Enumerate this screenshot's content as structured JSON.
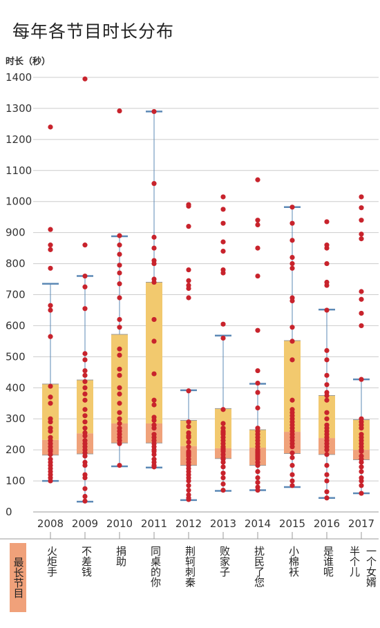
{
  "title": "每年各节目时长分布",
  "y_unit_label": "时长（秒）",
  "longest_label": "最长节目",
  "longest_programs": [
    "火炬手",
    "不差钱",
    "捐助",
    "同桌的你",
    "荆轲刺秦",
    "败家子",
    "扰民了您",
    "小棉袄",
    "是谁呢",
    "半个儿|一个女婿"
  ],
  "colors": {
    "box_upper": "#f2c96e",
    "box_lower": "#f0a27a",
    "point": "#c8232c",
    "whisker": "#5b88b5",
    "axis": "#999999",
    "grid": "#cccccc"
  },
  "chart_data": {
    "type": "box",
    "title": "每年各节目时长分布",
    "ylabel": "时长（秒）",
    "ylim": [
      0,
      1400
    ],
    "yticks": [
      0,
      100,
      200,
      300,
      400,
      500,
      600,
      700,
      800,
      900,
      1000,
      1100,
      1200,
      1300,
      1400
    ],
    "categories": [
      "2008",
      "2009",
      "2010",
      "2011",
      "2012",
      "2013",
      "2014",
      "2015",
      "2016",
      "2017"
    ],
    "boxes": [
      {
        "year": "2008",
        "whisker_low": 100,
        "q1": 183,
        "median": 232,
        "q3": 412,
        "whisker_high": 735
      },
      {
        "year": "2009",
        "whisker_low": 33,
        "q1": 187,
        "median": 253,
        "q3": 425,
        "whisker_high": 760
      },
      {
        "year": "2010",
        "whisker_low": 147,
        "q1": 222,
        "median": 285,
        "q3": 572,
        "whisker_high": 888
      },
      {
        "year": "2011",
        "whisker_low": 143,
        "q1": 222,
        "median": 285,
        "q3": 740,
        "whisker_high": 1290
      },
      {
        "year": "2012",
        "whisker_low": 38,
        "q1": 150,
        "median": 212,
        "q3": 295,
        "whisker_high": 392
      },
      {
        "year": "2013",
        "whisker_low": 68,
        "q1": 172,
        "median": 205,
        "q3": 333,
        "whisker_high": 568
      },
      {
        "year": "2014",
        "whisker_low": 70,
        "q1": 150,
        "median": 207,
        "q3": 265,
        "whisker_high": 413
      },
      {
        "year": "2015",
        "whisker_low": 80,
        "q1": 188,
        "median": 258,
        "q3": 552,
        "whisker_high": 982
      },
      {
        "year": "2016",
        "whisker_low": 45,
        "q1": 185,
        "median": 238,
        "q3": 375,
        "whisker_high": 652
      },
      {
        "year": "2017",
        "whisker_low": 60,
        "q1": 168,
        "median": 200,
        "q3": 297,
        "whisker_high": 427
      }
    ],
    "points": [
      {
        "year": "2008",
        "values": [
          1240,
          910,
          860,
          845,
          785,
          665,
          650,
          565,
          405,
          370,
          350,
          300,
          290,
          270,
          260,
          240,
          230,
          220,
          210,
          200,
          195,
          185,
          170,
          160,
          150,
          140,
          130,
          120,
          110,
          100
        ]
      },
      {
        "year": "2009",
        "values": [
          1395,
          860,
          760,
          725,
          655,
          510,
          490,
          455,
          440,
          420,
          400,
          380,
          360,
          330,
          310,
          290,
          270,
          255,
          245,
          230,
          220,
          210,
          200,
          190,
          180,
          160,
          150,
          120,
          110,
          75,
          50,
          35
        ]
      },
      {
        "year": "2010",
        "values": [
          1292,
          890,
          860,
          830,
          795,
          770,
          735,
          690,
          620,
          595,
          525,
          505,
          460,
          440,
          400,
          380,
          350,
          320,
          300,
          285,
          270,
          260,
          250,
          240,
          230,
          220,
          150
        ]
      },
      {
        "year": "2011",
        "values": [
          1290,
          1058,
          885,
          850,
          810,
          800,
          750,
          740,
          620,
          550,
          445,
          360,
          345,
          305,
          295,
          280,
          270,
          250,
          240,
          230,
          220,
          210,
          200,
          195,
          185,
          170,
          160,
          150,
          145
        ]
      },
      {
        "year": "2012",
        "values": [
          990,
          985,
          920,
          780,
          745,
          730,
          720,
          690,
          390,
          290,
          275,
          255,
          245,
          240,
          225,
          210,
          195,
          190,
          185,
          180,
          170,
          160,
          150,
          140,
          130,
          120,
          110,
          100,
          85,
          70,
          55,
          45,
          40
        ]
      },
      {
        "year": "2013",
        "values": [
          1015,
          975,
          930,
          870,
          840,
          780,
          770,
          605,
          560,
          330,
          285,
          270,
          260,
          255,
          250,
          240,
          230,
          220,
          210,
          205,
          200,
          195,
          185,
          175,
          170,
          160,
          145,
          125,
          110,
          90,
          70
        ]
      },
      {
        "year": "2014",
        "values": [
          1070,
          940,
          925,
          850,
          760,
          585,
          455,
          415,
          385,
          335,
          270,
          260,
          250,
          240,
          230,
          220,
          210,
          200,
          195,
          190,
          185,
          180,
          175,
          170,
          160,
          150,
          130,
          110,
          95,
          80,
          70
        ]
      },
      {
        "year": "2015",
        "values": [
          982,
          930,
          875,
          820,
          800,
          785,
          690,
          680,
          595,
          550,
          490,
          360,
          330,
          320,
          310,
          300,
          290,
          280,
          270,
          260,
          250,
          240,
          230,
          220,
          210,
          190,
          175,
          150,
          120,
          100,
          85
        ]
      },
      {
        "year": "2016",
        "values": [
          935,
          860,
          850,
          800,
          740,
          730,
          650,
          520,
          490,
          440,
          410,
          385,
          375,
          360,
          320,
          300,
          280,
          270,
          260,
          250,
          240,
          230,
          220,
          210,
          200,
          185,
          150,
          120,
          100,
          65,
          45
        ]
      },
      {
        "year": "2017",
        "values": [
          1015,
          980,
          940,
          895,
          880,
          710,
          685,
          640,
          600,
          427,
          300,
          290,
          280,
          270,
          250,
          240,
          230,
          220,
          210,
          200,
          195,
          180,
          170,
          160,
          145,
          130,
          110,
          100,
          85,
          60
        ]
      }
    ]
  }
}
